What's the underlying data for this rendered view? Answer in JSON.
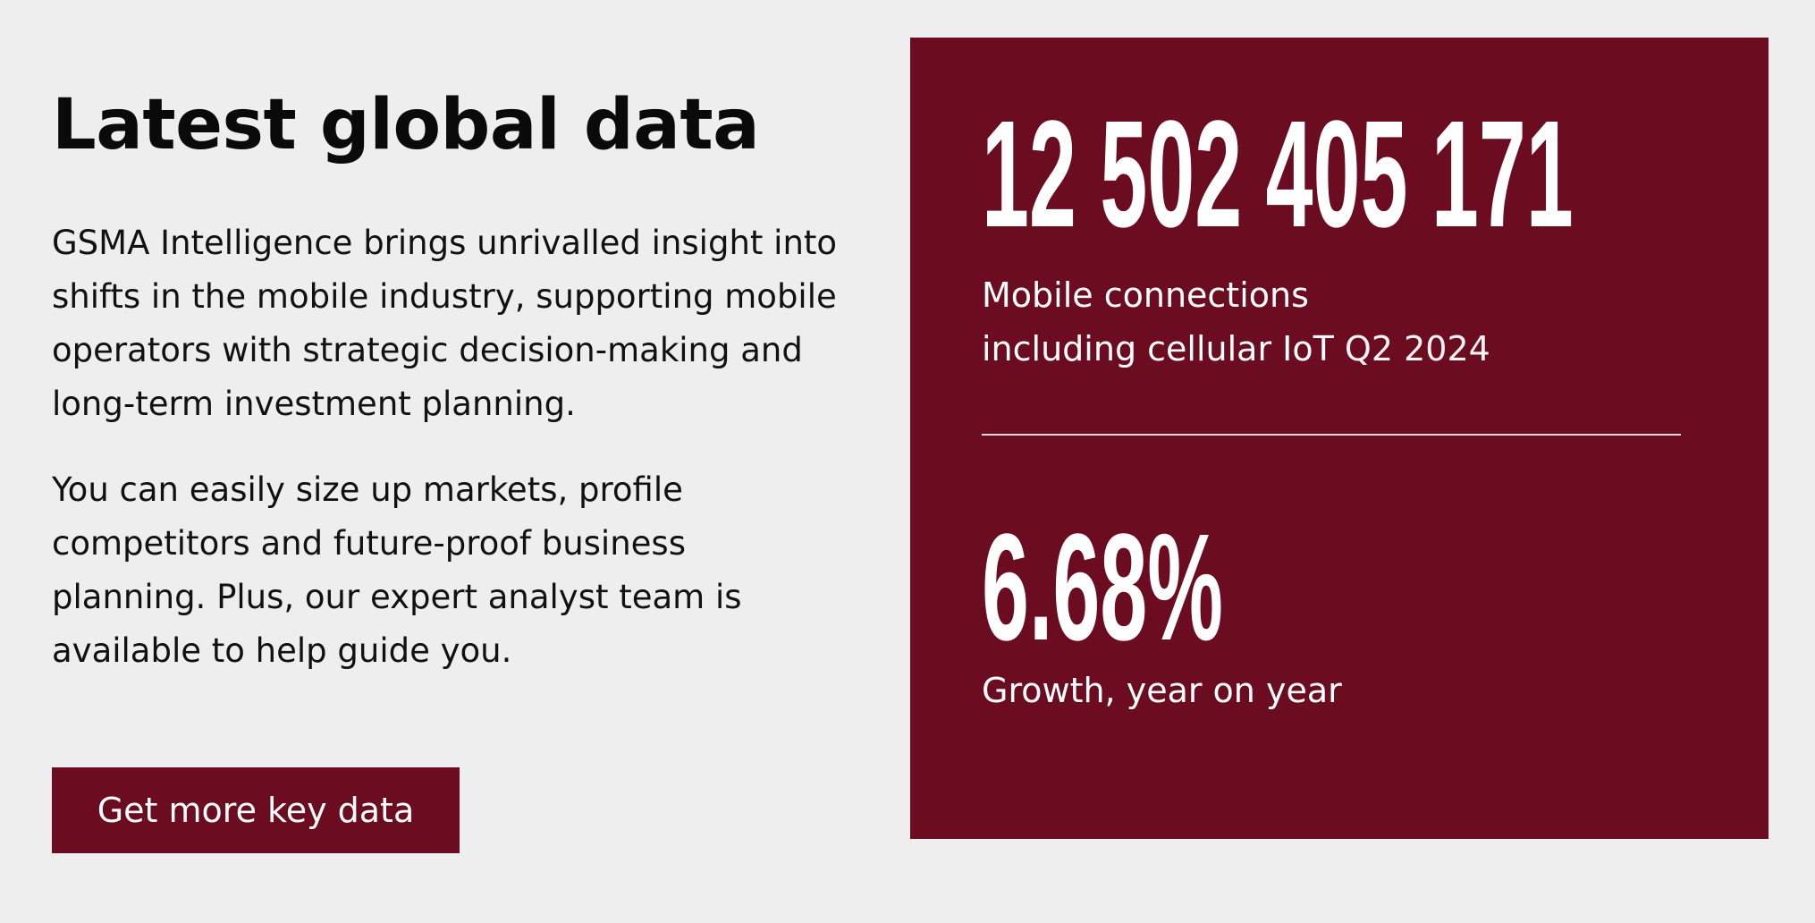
{
  "left": {
    "title": "Latest global data",
    "paragraph_1": "GSMA Intelligence brings unrivalled insight into shifts in the mobile industry, supporting mobile operators with strategic decision-making and long-term investment planning.",
    "paragraph_2": "You can easily size up markets, profile competitors and future-proof business planning. Plus, our expert analyst team is available to help guide you.",
    "button_label": "Get more key data"
  },
  "stats": {
    "connections_value": "12 502 405 171",
    "connections_label_line1": "Mobile connections",
    "connections_label_line2": "including cellular IoT",
    "connections_period": "Q2 2024",
    "growth_value": "6.68%",
    "growth_label": "Growth, year on year"
  },
  "colors": {
    "background": "#eeeeee",
    "panel": "#6b0c20",
    "button": "#6b0c20",
    "text_light": "#ffffff",
    "text_dark": "#111111"
  }
}
